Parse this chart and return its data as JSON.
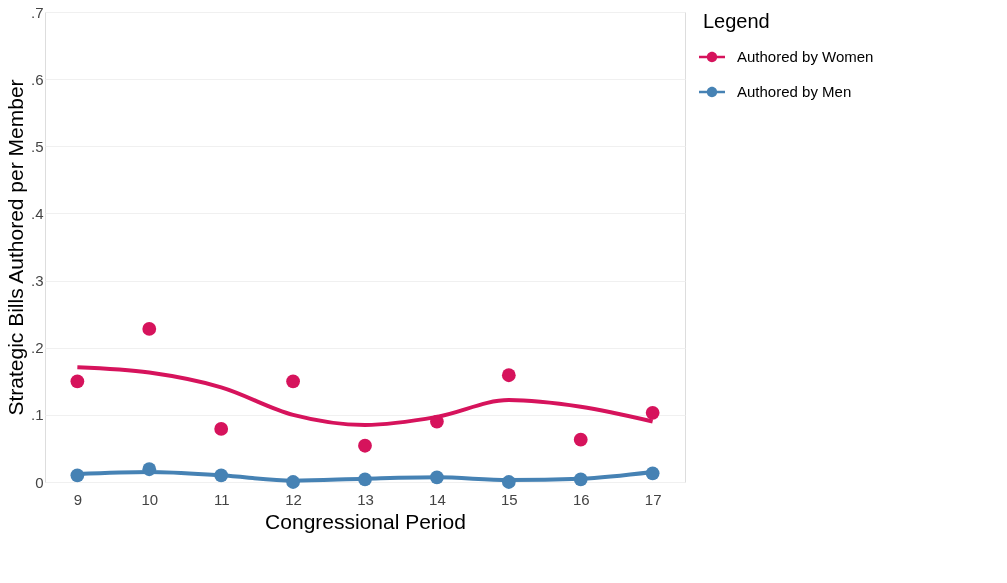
{
  "chart_data": {
    "type": "scatter",
    "xlabel": "Congressional Period",
    "ylabel": "Strategic Bills Authored per Member",
    "legend_title": "Legend",
    "xlim": [
      8.55,
      17.45
    ],
    "xticks": [
      {
        "value": 9,
        "label": "9"
      },
      {
        "value": 10,
        "label": "10"
      },
      {
        "value": 11,
        "label": "11"
      },
      {
        "value": 12,
        "label": "12"
      },
      {
        "value": 13,
        "label": "13"
      },
      {
        "value": 14,
        "label": "14"
      },
      {
        "value": 15,
        "label": "15"
      },
      {
        "value": 16,
        "label": "16"
      },
      {
        "value": 17,
        "label": "17"
      }
    ],
    "ylim": [
      0,
      0.7
    ],
    "yticks": [
      {
        "value": 0,
        "label": "0"
      },
      {
        "value": 0.1,
        "label": ".1"
      },
      {
        "value": 0.2,
        "label": ".2"
      },
      {
        "value": 0.3,
        "label": ".3"
      },
      {
        "value": 0.4,
        "label": ".4"
      },
      {
        "value": 0.5,
        "label": ".5"
      },
      {
        "value": 0.6,
        "label": ".6"
      },
      {
        "value": 0.7,
        "label": ".7"
      }
    ],
    "grid": "y",
    "legend": "right",
    "marker": "circle",
    "line_style": "solid",
    "series": [
      {
        "type": "line",
        "marker": "none",
        "color": "#d6135c",
        "x": [
          9,
          10,
          11,
          12,
          13,
          14,
          15,
          16,
          17
        ],
        "values": [
          0.171,
          0.163,
          0.141,
          0.1,
          0.085,
          0.097,
          0.122,
          0.112,
          0.09
        ]
      },
      {
        "type": "line",
        "marker": "none",
        "color": "#4682b4",
        "x": [
          9,
          10,
          11,
          12,
          13,
          14,
          15,
          16,
          17
        ],
        "values": [
          0.012,
          0.015,
          0.01,
          0.002,
          0.005,
          0.007,
          0.003,
          0.005,
          0.015
        ]
      },
      {
        "name": "Authored by Women",
        "color": "#d6135c",
        "x": [
          9,
          10,
          11,
          12,
          13,
          14,
          15,
          16,
          17
        ],
        "values": [
          0.15,
          0.228,
          0.079,
          0.15,
          0.054,
          0.09,
          0.159,
          0.063,
          0.103
        ]
      },
      {
        "name": "Authored by Men",
        "color": "#4682b4",
        "x": [
          9,
          10,
          11,
          12,
          13,
          14,
          15,
          16,
          17
        ],
        "values": [
          0.01,
          0.019,
          0.01,
          0,
          0.004,
          0.007,
          0,
          0.004,
          0.013
        ]
      }
    ]
  }
}
